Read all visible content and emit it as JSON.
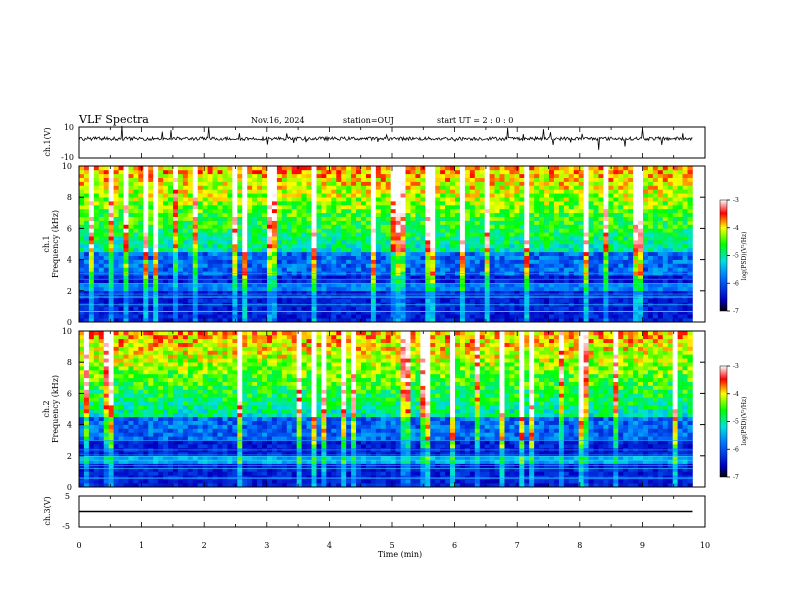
{
  "header": {
    "title": "VLF Spectra",
    "date": "Nov.16, 2024",
    "station": "station=OUJ",
    "start": "start  UT =   2 : 0  : 0"
  },
  "chart_data": {
    "type": "heatmap",
    "xlabel": "Time  (min)",
    "xlim": [
      0,
      10
    ],
    "xticks": [
      "0",
      "1",
      "2",
      "3",
      "4",
      "5",
      "6",
      "7",
      "8",
      "9",
      "10"
    ],
    "panels": [
      {
        "id": "ch1-waveform",
        "type": "line",
        "ylabel": "ch.1(V)",
        "ylim": [
          -10,
          10
        ],
        "yticks": [
          "10",
          "-10"
        ],
        "baseline": 0,
        "data_end_min": 9.8
      },
      {
        "id": "ch1-spectrogram",
        "type": "heatmap",
        "ylabel_top": "ch.1",
        "ylabel": "Frequency  (kHz)",
        "ylim": [
          0,
          10
        ],
        "yticks": [
          "0",
          "2",
          "4",
          "6",
          "8",
          "10"
        ],
        "data_end_min": 9.8,
        "colorbar": {
          "label": "log(PSD)(V²/Hz)",
          "range": [
            -7,
            -3
          ],
          "ticks": [
            "-3",
            "-4",
            "-5",
            "-6",
            "-7"
          ]
        }
      },
      {
        "id": "ch2-spectrogram",
        "type": "heatmap",
        "ylabel_top": "ch.2",
        "ylabel": "Frequency  (kHz)",
        "ylim": [
          0,
          10
        ],
        "yticks": [
          "0",
          "2",
          "4",
          "6",
          "8",
          "10"
        ],
        "data_end_min": 9.8,
        "colorbar": {
          "label": "log(PSD)(V²/Hz)",
          "range": [
            -7,
            -3
          ],
          "ticks": [
            "-3",
            "-4",
            "-5",
            "-6",
            "-7"
          ]
        }
      },
      {
        "id": "ch3-waveform",
        "type": "line",
        "ylabel": "ch.3(V)",
        "ylim": [
          -5,
          5
        ],
        "yticks": [
          "5",
          "-5"
        ],
        "baseline": 0,
        "data_end_min": 9.8
      }
    ]
  }
}
